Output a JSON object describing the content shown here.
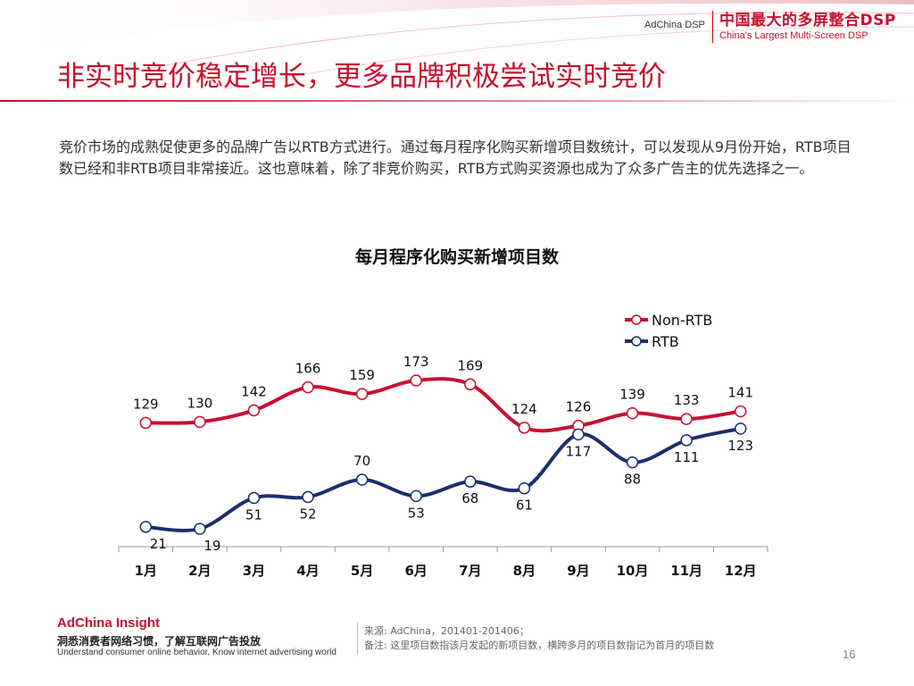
{
  "header": {
    "brand": "AdChina DSP",
    "slogan_cn": "中国最大的多屏整合DSP",
    "slogan_en": "China's Largest Multi-Screen DSP"
  },
  "title": "非实时竞价稳定增长，更多品牌积极尝试实时竞价",
  "intro": "竞价市场的成熟促使更多的品牌广告以RTB方式进行。通过每月程序化购买新增项目数统计，可以发现从9月份开始，RTB项目数已经和非RTB项目非常接近。这也意味着，除了非竞价购买，RTB方式购买资源也成为了众多广告主的优先选择之一。",
  "chart_data": {
    "type": "line",
    "title": "每月程序化购买新增项目数",
    "categories": [
      "1月",
      "2月",
      "3月",
      "4月",
      "5月",
      "6月",
      "7月",
      "8月",
      "9月",
      "10月",
      "11月",
      "12月"
    ],
    "series": [
      {
        "name": "Non-RTB",
        "color": "#c8102e",
        "values": [
          129,
          130,
          142,
          166,
          159,
          173,
          169,
          124,
          126,
          139,
          133,
          141
        ]
      },
      {
        "name": "RTB",
        "color": "#1b2f6b",
        "values": [
          21,
          19,
          51,
          52,
          70,
          53,
          68,
          61,
          117,
          88,
          111,
          123
        ]
      }
    ],
    "xlabel": "",
    "ylabel": "",
    "grid": false,
    "legend": "top-right",
    "smooth": true
  },
  "footer": {
    "brand": "AdChina Insight",
    "tagline_cn": "洞悉消费者网络习惯，了解互联网广告投放",
    "tagline_en": "Understand consumer online behavior, Know internet advertising world",
    "source": "来源: AdChina，201401-201406；",
    "note": "备注: 这里项目数指该月发起的新项目数，横跨多月的项目数指记为首月的项目数",
    "page_number": "16"
  }
}
